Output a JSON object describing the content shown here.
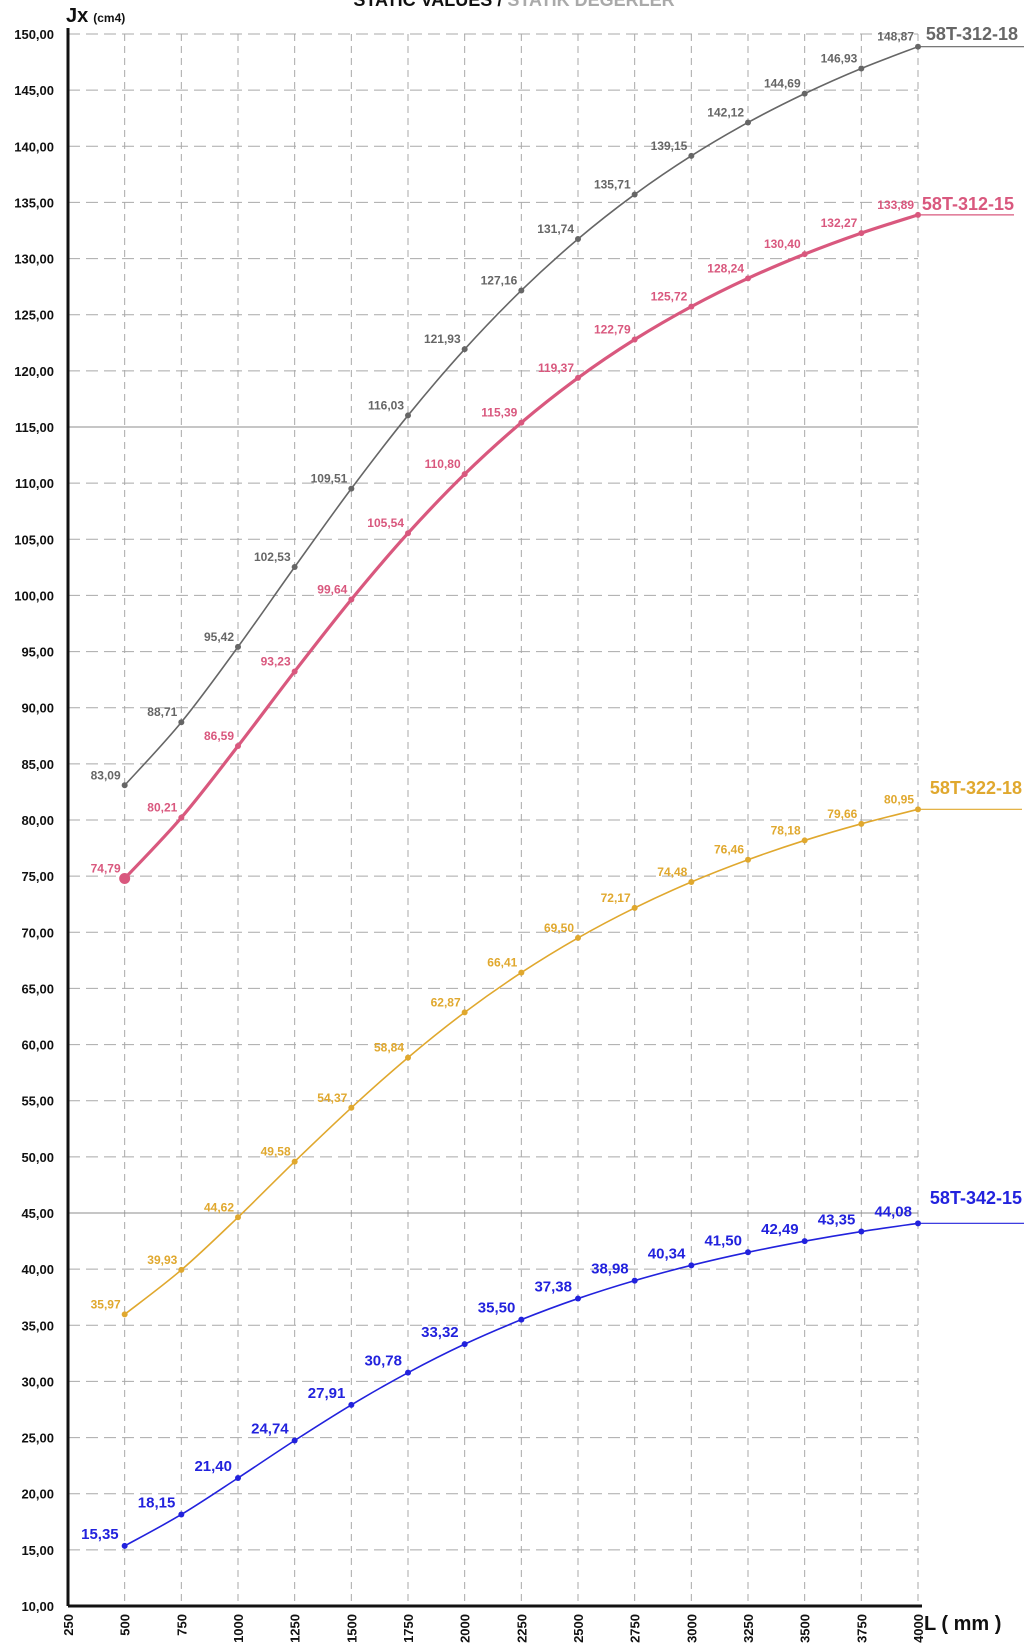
{
  "chart_data": {
    "type": "line",
    "title": "STATIC VALUES / STATİK DEĞERLER",
    "title_parts": [
      "STATIC VALUES / ",
      "STATİK DEĞERLER"
    ],
    "ylabel": "Jx",
    "ylabel_unit": "(cm4)",
    "xlabel": "L ( mm )",
    "xlim": [
      250,
      4000
    ],
    "ylim": [
      10,
      150
    ],
    "grid": true,
    "x_ticks": [
      250,
      500,
      750,
      1000,
      1250,
      1500,
      1750,
      2000,
      2250,
      2500,
      2750,
      3000,
      3250,
      3500,
      3750,
      4000
    ],
    "y_ticks": [
      "10,00",
      "15,00",
      "20,00",
      "25,00",
      "30,00",
      "35,00",
      "40,00",
      "45,00",
      "50,00",
      "55,00",
      "60,00",
      "65,00",
      "70,00",
      "75,00",
      "80,00",
      "85,00",
      "90,00",
      "95,00",
      "100,00",
      "105,00",
      "110,00",
      "115,00",
      "120,00",
      "125,00",
      "130,00",
      "135,00",
      "140,00",
      "145,00",
      "150,00"
    ],
    "x": [
      500,
      750,
      1000,
      1250,
      1500,
      1750,
      2000,
      2250,
      2500,
      2750,
      3000,
      3250,
      3500,
      3750,
      4000
    ],
    "series": [
      {
        "name": "58T-312-18",
        "color": "#666666",
        "values": [
          83.09,
          88.71,
          95.42,
          102.53,
          109.51,
          116.03,
          121.93,
          127.16,
          131.74,
          135.71,
          139.15,
          142.12,
          144.69,
          146.93,
          148.87
        ],
        "labels": [
          "83,09",
          "88,71",
          "95,42",
          "102,53",
          "109,51",
          "116,03",
          "121,93",
          "127,16",
          "131,74",
          "135,71",
          "139,15",
          "142,12",
          "144,69",
          "146,93",
          "148,87"
        ]
      },
      {
        "name": "58T-312-15",
        "color": "#d9587e",
        "values": [
          74.79,
          80.21,
          86.59,
          93.23,
          99.64,
          105.54,
          110.8,
          115.39,
          119.37,
          122.79,
          125.72,
          128.24,
          130.4,
          132.27,
          133.89
        ],
        "labels": [
          "74,79",
          "80,21",
          "86,59",
          "93,23",
          "99,64",
          "105,54",
          "110,80",
          "115,39",
          "119,37",
          "122,79",
          "125,72",
          "128,24",
          "130,40",
          "132,27",
          "133,89"
        ]
      },
      {
        "name": "58T-322-18",
        "color": "#e0a82e",
        "values": [
          35.97,
          39.93,
          44.62,
          49.58,
          54.37,
          58.84,
          62.87,
          66.41,
          69.5,
          72.17,
          74.48,
          76.46,
          78.18,
          79.66,
          80.95
        ],
        "labels": [
          "35,97",
          "39,93",
          "44,62",
          "49,58",
          "54,37",
          "58,84",
          "62,87",
          "66,41",
          "69,50",
          "72,17",
          "74,48",
          "76,46",
          "78,18",
          "79,66",
          "80,95"
        ]
      },
      {
        "name": "58T-342-15",
        "color": "#2222dd",
        "values": [
          15.35,
          18.15,
          21.4,
          24.74,
          27.91,
          30.78,
          33.32,
          35.5,
          37.38,
          38.98,
          40.34,
          41.5,
          42.49,
          43.35,
          44.08
        ],
        "labels": [
          "15,35",
          "18,15",
          "21,40",
          "24,74",
          "27,91",
          "30,78",
          "33,32",
          "35,50",
          "37,38",
          "38,98",
          "40,34",
          "41,50",
          "42,49",
          "43,35",
          "44,08"
        ]
      }
    ]
  }
}
